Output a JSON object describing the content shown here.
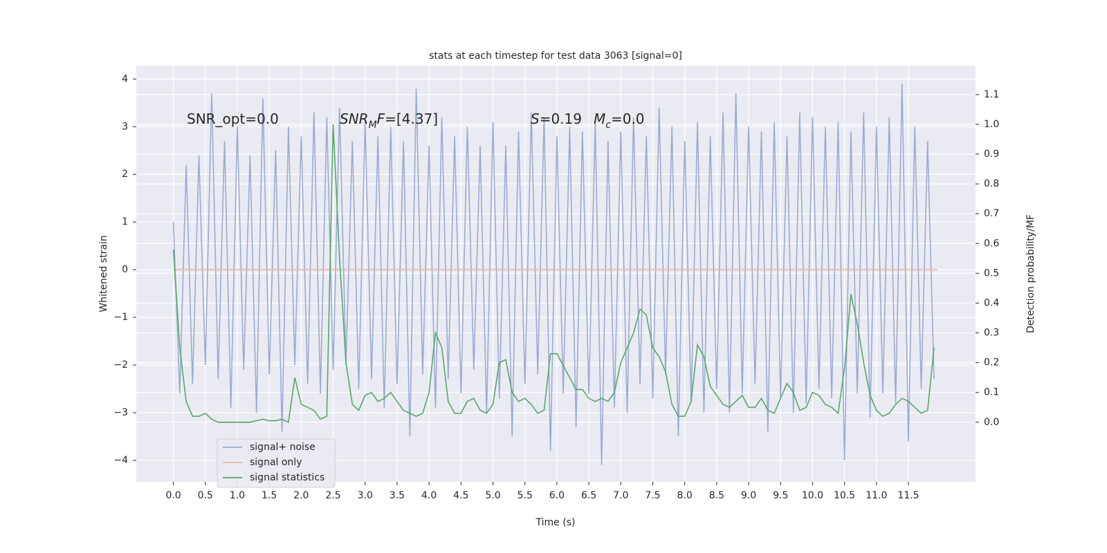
{
  "chart_data": {
    "type": "line",
    "title": "stats at each timestep for test data 3063 [signal=0]",
    "xlabel": "Time (s)",
    "ylabel": "Whitened strain",
    "y2label": "Detection probability/MF",
    "grid": true,
    "legend": "lower left",
    "xlim": [
      -0.58,
      12.55
    ],
    "ylim": [
      -4.45,
      4.28
    ],
    "y2lim": [
      -0.2,
      1.197
    ],
    "xticks": [
      {
        "value": 0,
        "label": "0.0"
      },
      {
        "value": 0.5,
        "label": "0.5"
      },
      {
        "value": 1,
        "label": "1.0"
      },
      {
        "value": 1.5,
        "label": "1.5"
      },
      {
        "value": 2,
        "label": "2.0"
      },
      {
        "value": 2.5,
        "label": "2.5"
      },
      {
        "value": 3,
        "label": "3.0"
      },
      {
        "value": 3.5,
        "label": "3.5"
      },
      {
        "value": 4,
        "label": "4.0"
      },
      {
        "value": 4.5,
        "label": "4.5"
      },
      {
        "value": 5,
        "label": "5.0"
      },
      {
        "value": 5.5,
        "label": "5.5"
      },
      {
        "value": 6,
        "label": "6.0"
      },
      {
        "value": 6.5,
        "label": "6.5"
      },
      {
        "value": 7,
        "label": "7.0"
      },
      {
        "value": 7.5,
        "label": "7.5"
      },
      {
        "value": 8,
        "label": "8.0"
      },
      {
        "value": 8.5,
        "label": "8.5"
      },
      {
        "value": 9,
        "label": "9.0"
      },
      {
        "value": 9.5,
        "label": "9.5"
      },
      {
        "value": 10,
        "label": "10.0"
      },
      {
        "value": 10.5,
        "label": "10.5"
      },
      {
        "value": 11,
        "label": "11.0"
      },
      {
        "value": 11.5,
        "label": "11.5"
      }
    ],
    "yticks": [
      {
        "value": -4,
        "label": "−4"
      },
      {
        "value": -3,
        "label": "−3"
      },
      {
        "value": -2,
        "label": "−2"
      },
      {
        "value": -1,
        "label": "−1"
      },
      0,
      1,
      2,
      3,
      4
    ],
    "y2ticks": [
      {
        "value": 0,
        "label": "0.0"
      },
      {
        "value": 0.1,
        "label": "0.1"
      },
      {
        "value": 0.2,
        "label": "0.2"
      },
      {
        "value": 0.3,
        "label": "0.3"
      },
      {
        "value": 0.4,
        "label": "0.4"
      },
      {
        "value": 0.5,
        "label": "0.5"
      },
      {
        "value": 0.6,
        "label": "0.6"
      },
      {
        "value": 0.7,
        "label": "0.7"
      },
      {
        "value": 0.8,
        "label": "0.8"
      },
      {
        "value": 0.9,
        "label": "0.9"
      },
      {
        "value": 1,
        "label": "1.0"
      },
      {
        "value": 1.1,
        "label": "1.1"
      }
    ],
    "annotations": [
      {
        "parts": [
          {
            "text": "SNR_opt=0.0"
          }
        ]
      },
      {
        "parts": [
          {
            "text": "SNR",
            "italic": true
          },
          {
            "text": "M",
            "italic": true,
            "sub": true
          },
          {
            "text": "F",
            "italic": true
          },
          {
            "text": "=[4.37]"
          }
        ]
      },
      {
        "parts": [
          {
            "text": "S",
            "italic": true
          },
          {
            "text": "=0.19"
          }
        ]
      },
      {
        "parts": [
          {
            "text": "M",
            "italic": true
          },
          {
            "text": "c",
            "italic": true,
            "sub": true
          },
          {
            "text": "=0.0"
          }
        ]
      }
    ],
    "x": [
      0.0,
      0.1,
      0.2,
      0.3,
      0.4,
      0.5,
      0.6,
      0.7,
      0.8,
      0.9,
      1.0,
      1.1,
      1.2,
      1.3,
      1.4,
      1.5,
      1.6,
      1.7,
      1.8,
      1.9,
      2.0,
      2.1,
      2.2,
      2.3,
      2.4,
      2.5,
      2.6,
      2.7,
      2.8,
      2.9,
      3.0,
      3.1,
      3.2,
      3.3,
      3.4,
      3.5,
      3.6,
      3.7,
      3.8,
      3.9,
      4.0,
      4.1,
      4.2,
      4.3,
      4.4,
      4.5,
      4.6,
      4.7,
      4.8,
      4.9,
      5.0,
      5.1,
      5.2,
      5.3,
      5.4,
      5.5,
      5.6,
      5.7,
      5.8,
      5.9,
      6.0,
      6.1,
      6.2,
      6.3,
      6.4,
      6.5,
      6.6,
      6.7,
      6.8,
      6.9,
      7.0,
      7.1,
      7.2,
      7.3,
      7.4,
      7.5,
      7.6,
      7.7,
      7.8,
      7.9,
      8.0,
      8.1,
      8.2,
      8.3,
      8.4,
      8.5,
      8.6,
      8.7,
      8.8,
      8.9,
      9.0,
      9.1,
      9.2,
      9.3,
      9.4,
      9.5,
      9.6,
      9.7,
      9.8,
      9.9,
      10.0,
      10.1,
      10.2,
      10.3,
      10.4,
      10.5,
      10.6,
      10.7,
      10.8,
      10.9,
      11.0,
      11.1,
      11.2,
      11.3,
      11.4,
      11.5,
      11.6,
      11.7,
      11.8,
      11.9
    ],
    "series": [
      {
        "name": "signal+ noise",
        "color": "#9aabd2",
        "values": [
          1.0,
          -2.6,
          2.2,
          -2.4,
          2.4,
          -2.0,
          3.7,
          -2.3,
          2.7,
          -2.9,
          3.0,
          -2.1,
          2.4,
          -3.0,
          3.6,
          -2.2,
          2.5,
          -3.4,
          3.0,
          -2.0,
          2.8,
          -2.4,
          3.3,
          -2.6,
          3.2,
          -2.1,
          3.4,
          -2.0,
          2.7,
          -2.5,
          3.1,
          -2.3,
          2.8,
          -2.9,
          3.0,
          -2.4,
          2.7,
          -3.5,
          3.8,
          -2.2,
          2.6,
          -2.9,
          3.2,
          -2.3,
          2.8,
          -2.6,
          3.0,
          -2.1,
          2.6,
          -3.0,
          3.1,
          -2.7,
          2.6,
          -3.5,
          2.9,
          -2.4,
          3.3,
          -2.2,
          3.2,
          -3.8,
          2.8,
          -2.6,
          3.0,
          -3.3,
          2.9,
          -2.6,
          3.1,
          -4.1,
          2.7,
          -2.9,
          2.9,
          -3.0,
          3.2,
          -2.4,
          2.8,
          -2.7,
          3.4,
          -2.2,
          3.0,
          -3.5,
          2.7,
          -2.8,
          3.1,
          -3.0,
          2.8,
          -2.5,
          3.3,
          -3.0,
          3.7,
          -2.6,
          3.0,
          -2.4,
          2.9,
          -3.4,
          3.1,
          -2.7,
          2.8,
          -3.0,
          3.3,
          -2.8,
          3.2,
          -2.5,
          3.0,
          -2.7,
          3.1,
          -4.0,
          2.9,
          -2.6,
          3.3,
          -3.1,
          3.0,
          -2.6,
          3.2,
          -2.8,
          3.9,
          -3.6,
          3.0,
          -2.5,
          2.7,
          -2.3
        ]
      },
      {
        "name": "signal only",
        "color": "#eeb69a",
        "x": [
          0.0,
          11.95
        ],
        "values": [
          0,
          0
        ]
      },
      {
        "name": "signal statistics",
        "color": "#55a868",
        "axis": "y2",
        "values": [
          0.58,
          0.25,
          0.07,
          0.02,
          0.02,
          0.03,
          0.01,
          0.0,
          0.0,
          0.0,
          0.0,
          0.0,
          0.0,
          0.005,
          0.01,
          0.005,
          0.005,
          0.01,
          0.0,
          0.15,
          0.06,
          0.05,
          0.04,
          0.01,
          0.02,
          1.0,
          0.55,
          0.2,
          0.06,
          0.04,
          0.09,
          0.1,
          0.07,
          0.08,
          0.1,
          0.07,
          0.04,
          0.03,
          0.02,
          0.03,
          0.1,
          0.3,
          0.25,
          0.07,
          0.03,
          0.03,
          0.07,
          0.08,
          0.04,
          0.03,
          0.06,
          0.2,
          0.21,
          0.1,
          0.07,
          0.08,
          0.06,
          0.03,
          0.04,
          0.23,
          0.23,
          0.19,
          0.15,
          0.11,
          0.11,
          0.08,
          0.07,
          0.08,
          0.07,
          0.1,
          0.2,
          0.25,
          0.3,
          0.38,
          0.36,
          0.25,
          0.22,
          0.17,
          0.06,
          0.02,
          0.02,
          0.07,
          0.26,
          0.22,
          0.12,
          0.09,
          0.06,
          0.05,
          0.07,
          0.09,
          0.05,
          0.05,
          0.08,
          0.04,
          0.03,
          0.08,
          0.13,
          0.1,
          0.04,
          0.05,
          0.1,
          0.09,
          0.06,
          0.05,
          0.03,
          0.18,
          0.43,
          0.33,
          0.2,
          0.09,
          0.04,
          0.02,
          0.03,
          0.06,
          0.08,
          0.07,
          0.05,
          0.03,
          0.04,
          0.25
        ]
      }
    ]
  }
}
